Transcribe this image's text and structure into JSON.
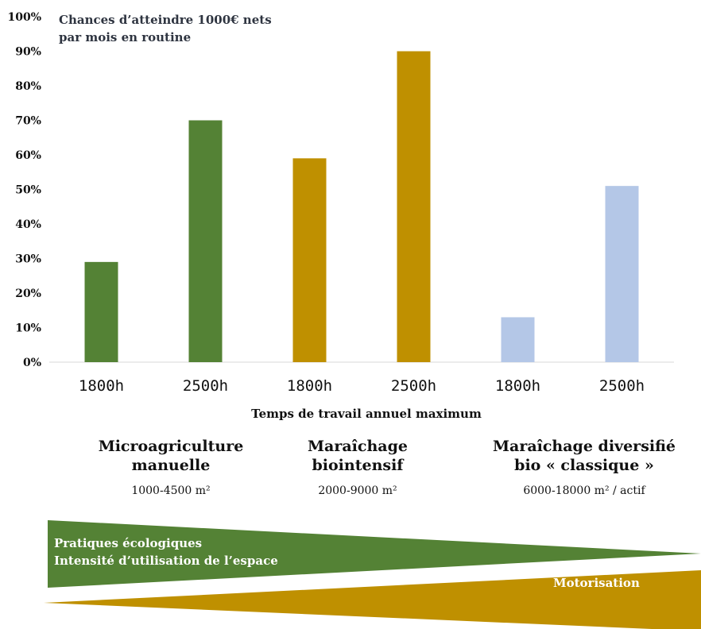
{
  "chart_data": {
    "type": "bar",
    "title": "Chances d’atteindre 1000€ nets par mois en routine",
    "title_lines": [
      "Chances d’atteindre 1000€ nets",
      "par mois en routine"
    ],
    "xlabel": "Temps de travail annuel maximum",
    "ylabel": "",
    "ylim": [
      0,
      100
    ],
    "yticks": [
      "0%",
      "10%",
      "20%",
      "30%",
      "40%",
      "50%",
      "60%",
      "70%",
      "80%",
      "90%",
      "100%"
    ],
    "categories": [
      "1800h",
      "2500h",
      "1800h",
      "2500h",
      "1800h",
      "2500h"
    ],
    "values": [
      29,
      70,
      59,
      90,
      13,
      51
    ],
    "colors": [
      "#548235",
      "#548235",
      "#bf9000",
      "#bf9000",
      "#b4c7e7",
      "#b4c7e7"
    ],
    "grid": false,
    "legend": "none"
  },
  "groups": [
    {
      "name_lines": [
        "Microagriculture",
        "manuelle"
      ],
      "area": "1000-4500 m²"
    },
    {
      "name_lines": [
        "Maraîchage",
        "biointensif"
      ],
      "area": "2000-9000 m²"
    },
    {
      "name_lines": [
        "Maraîchage diversifié",
        "bio « classique »"
      ],
      "area": "6000-18000 m² / actif"
    }
  ],
  "wedges": {
    "green": {
      "lines": [
        "Pratiques écologiques",
        "Intensité d’utilisation de l’espace"
      ],
      "color": "#548235"
    },
    "gold": {
      "label": "Motorisation",
      "color": "#bf9000"
    }
  }
}
